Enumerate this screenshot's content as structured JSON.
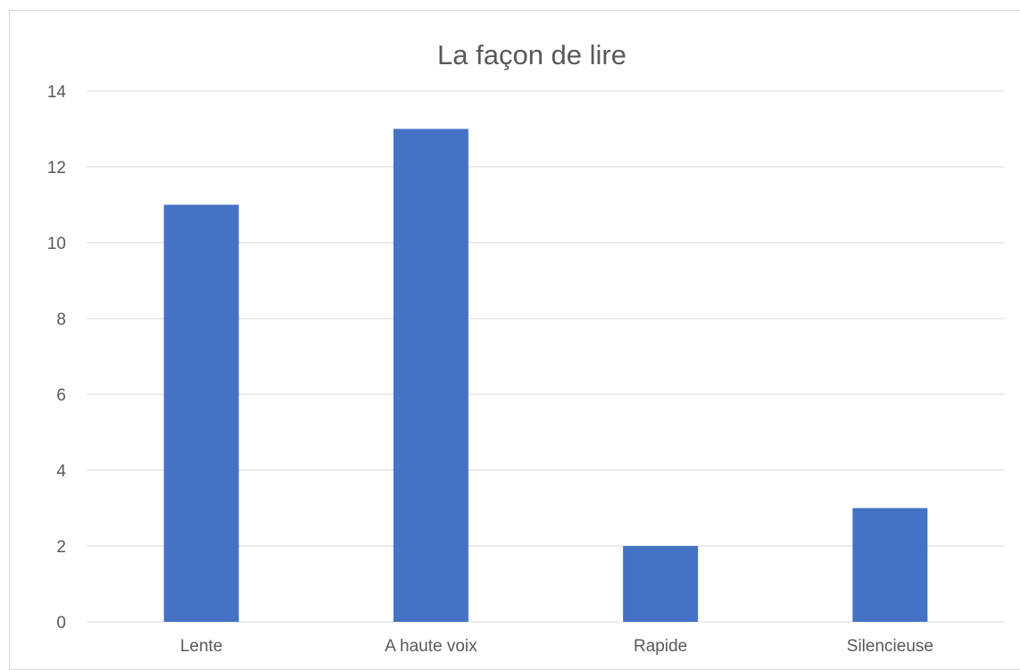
{
  "chart_data": {
    "type": "bar",
    "title": "La façon de lire",
    "categories": [
      "Lente",
      "A haute voix",
      "Rapide",
      "Silencieuse"
    ],
    "values": [
      11,
      13,
      2,
      3
    ],
    "ylim": [
      0,
      14
    ],
    "yticks": [
      "0",
      "2",
      "4",
      "6",
      "8",
      "10",
      "12",
      "14"
    ],
    "xlabel": "",
    "ylabel": "",
    "grid": true,
    "bar_color": "#4472c4",
    "grid_color": "#d9d9d9"
  }
}
